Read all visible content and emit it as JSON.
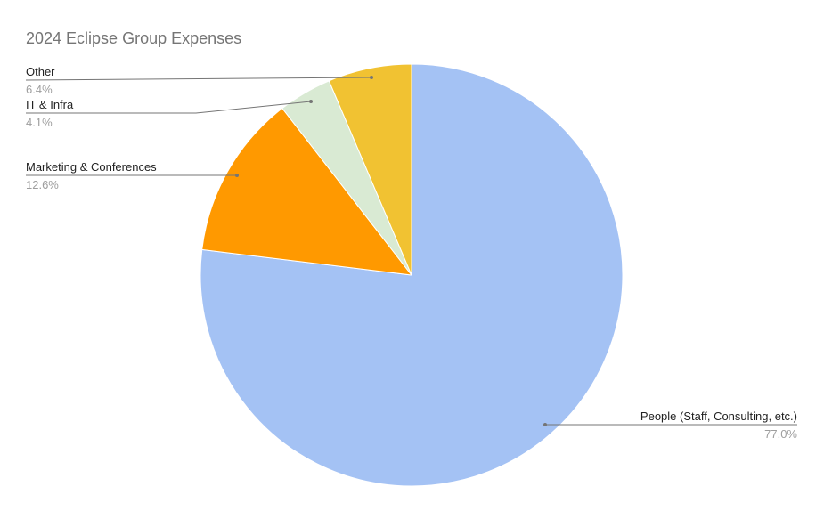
{
  "chart_data": {
    "type": "pie",
    "title": "2024 Eclipse Group Expenses",
    "start_angle": "top, clockwise",
    "slices": [
      {
        "label": "People (Staff, Consulting, etc.)",
        "value": 77.0,
        "display": "77.0%",
        "color": "#a4c2f4"
      },
      {
        "label": "Marketing & Conferences",
        "value": 12.6,
        "display": "12.6%",
        "color": "#ff9900"
      },
      {
        "label": "IT & Infra",
        "value": 4.1,
        "display": "4.1%",
        "color": "#d9ead3"
      },
      {
        "label": "Other",
        "value": 6.4,
        "display": "6.4%",
        "color": "#f1c232"
      }
    ],
    "legend": "none (labels with leader lines)"
  }
}
